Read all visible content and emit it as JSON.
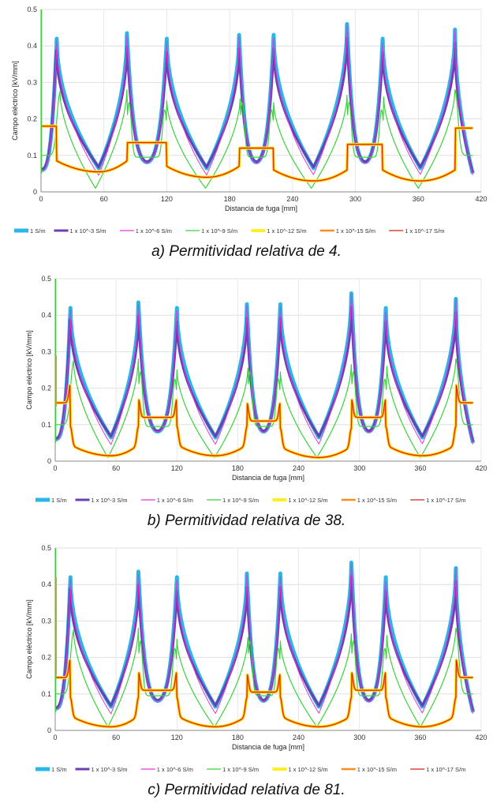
{
  "series_colors": [
    "#29b6e8",
    "#6a3fb0",
    "#e238d6",
    "#3ad23a",
    "#ffee22",
    "#ff8c1a",
    "#d62018"
  ],
  "legend": [
    "1 S/m",
    "1 x 10^-3 S/m",
    "1 x 10^-6 S/m",
    "1 x 10^-9 S/m",
    "1 x 10^-12 S/m",
    "1 x 10^-15 S/m",
    "1 x 10^-17 S/m"
  ],
  "chart_data": [
    {
      "type": "line",
      "caption": "a) Permitividad relativa de 4.",
      "xlabel": "Distancia de fuga [mm]",
      "ylabel": "Campo eléctrico [kV/mm]",
      "xlim": [
        0,
        420
      ],
      "ylim": [
        0,
        0.5
      ],
      "xticks": [
        "0",
        "60",
        "120",
        "180",
        "240",
        "300",
        "360",
        "420"
      ],
      "yticks": [
        "0",
        "0.1",
        "0.2",
        "0.3",
        "0.4",
        "0.5"
      ],
      "grid": true,
      "legend_position": "bottom",
      "high_peaks": [
        0.42,
        0.435,
        0.42,
        0.43,
        0.43,
        0.46,
        0.42,
        0.445
      ],
      "low_level": [
        0.18,
        0.135,
        0.12,
        0.13,
        0.175
      ],
      "low_dip": [
        0.055,
        0.04,
        0.03,
        0.03,
        0.04
      ]
    },
    {
      "type": "line",
      "caption": "b) Permitividad relativa de 38.",
      "xlabel": "Distancia de fuga [mm]",
      "ylabel": "Campo eléctrico [kV/mm]",
      "xlim": [
        0,
        420
      ],
      "ylim": [
        0,
        0.5
      ],
      "xticks": [
        "0",
        "60",
        "120",
        "180",
        "240",
        "300",
        "360",
        "420"
      ],
      "yticks": [
        "0",
        "0.1",
        "0.2",
        "0.3",
        "0.4",
        "0.5"
      ],
      "grid": true,
      "legend_position": "bottom",
      "high_peaks": [
        0.42,
        0.435,
        0.42,
        0.43,
        0.43,
        0.46,
        0.42,
        0.445
      ],
      "low_level": [
        0.16,
        0.12,
        0.11,
        0.12,
        0.16
      ],
      "low_dip": [
        0.015,
        0.015,
        0.01,
        0.015,
        0.015
      ]
    },
    {
      "type": "line",
      "caption": "c) Permitividad relativa de 81.",
      "xlabel": "Distancia de fuga [mm]",
      "ylabel": "Campo eléctrico [kV/mm]",
      "xlim": [
        0,
        420
      ],
      "ylim": [
        0,
        0.5
      ],
      "xticks": [
        "0",
        "60",
        "120",
        "180",
        "240",
        "300",
        "360",
        "420"
      ],
      "yticks": [
        "0",
        "0.1",
        "0.2",
        "0.3",
        "0.4",
        "0.5"
      ],
      "grid": true,
      "legend_position": "bottom",
      "high_peaks": [
        0.42,
        0.435,
        0.42,
        0.43,
        0.43,
        0.46,
        0.42,
        0.445
      ],
      "low_level": [
        0.145,
        0.11,
        0.105,
        0.11,
        0.145
      ],
      "low_dip": [
        0.01,
        0.01,
        0.01,
        0.01,
        0.01
      ]
    }
  ]
}
